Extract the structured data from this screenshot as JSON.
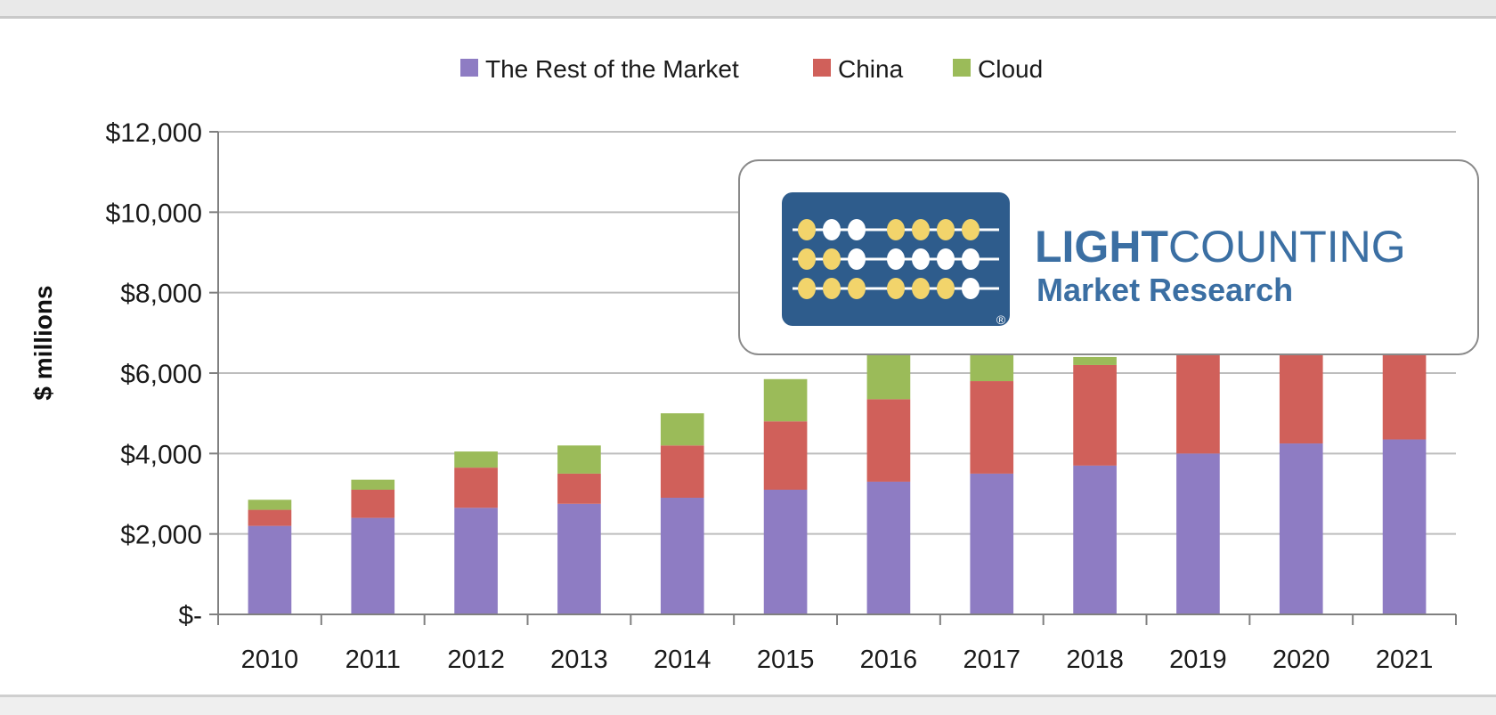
{
  "chart_data": {
    "type": "bar",
    "stacked": true,
    "title": "",
    "xlabel": "",
    "ylabel": "$ millions",
    "ylim": [
      0,
      12000
    ],
    "yticks": [
      0,
      2000,
      4000,
      6000,
      8000,
      10000,
      12000
    ],
    "ytick_labels": [
      "$-",
      "$2,000",
      "$4,000",
      "$6,000",
      "$8,000",
      "$10,000",
      "$12,000"
    ],
    "grid": true,
    "legend_position": "top",
    "categories": [
      "2010",
      "2011",
      "2012",
      "2013",
      "2014",
      "2015",
      "2016",
      "2017",
      "2018",
      "2019",
      "2020",
      "2021"
    ],
    "series": [
      {
        "name": "The Rest of the Market",
        "color": "#8e7cc3",
        "values": [
          2200,
          2400,
          2650,
          2750,
          2900,
          3100,
          3300,
          3500,
          3700,
          4000,
          4250,
          4350
        ]
      },
      {
        "name": "China",
        "color": "#d0605a",
        "values": [
          400,
          700,
          1000,
          750,
          1300,
          1700,
          2050,
          2300,
          2500,
          2450,
          2200,
          2100
        ]
      },
      {
        "name": "Cloud",
        "color": "#9bbb59",
        "values": [
          250,
          250,
          400,
          700,
          800,
          1050,
          1100,
          650,
          200,
          0,
          0,
          0
        ]
      }
    ]
  },
  "logo": {
    "word_bold": "LIGHT",
    "word_regular": "COUNTING",
    "subtitle": "Market Research",
    "registered": "®"
  },
  "colors": {
    "gridline": "#bdbdbd",
    "logo_tile": "#2e5c8c",
    "logo_bead": "#f2d46b",
    "logo_text": "#3b6fa3"
  }
}
